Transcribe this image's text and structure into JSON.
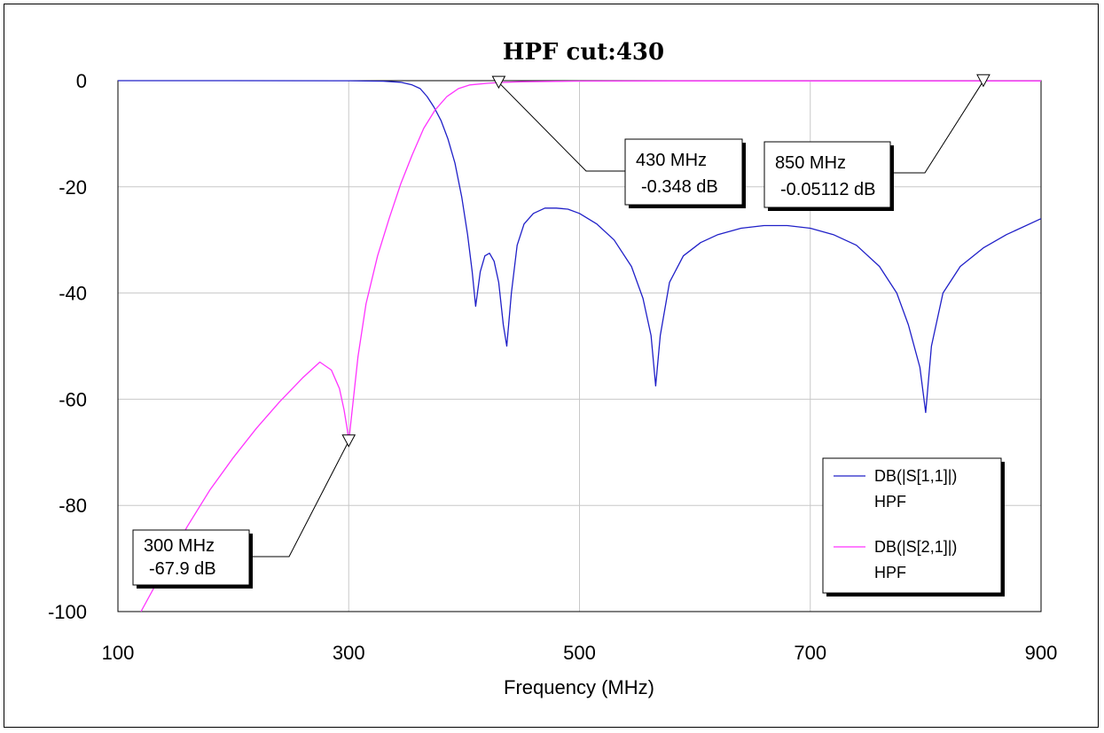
{
  "chart_data": {
    "type": "line",
    "title": "HPF cut:430",
    "xlabel": "Frequency (MHz)",
    "ylabel": "",
    "xlim": [
      100,
      900
    ],
    "ylim": [
      -100,
      0
    ],
    "x_ticks": [
      100,
      300,
      500,
      700,
      900
    ],
    "x_tick_labels": [
      "100",
      "300",
      "500",
      "700",
      "900"
    ],
    "y_ticks": [
      0,
      -20,
      -40,
      -60,
      -80,
      -100
    ],
    "y_tick_labels": [
      "0",
      "-20",
      "-40",
      "-60",
      "-80",
      "-100"
    ],
    "grid": true,
    "legend_position": "bottom-right",
    "series": [
      {
        "name": "DB(|S[1,1]|)",
        "label2": "HPF",
        "color": "#2020c8",
        "x": [
          100,
          200,
          300,
          330,
          345,
          355,
          362,
          368,
          374,
          380,
          386,
          392,
          398,
          403,
          407,
          410,
          414,
          418,
          422,
          426,
          430,
          434,
          437,
          441,
          446,
          452,
          460,
          470,
          480,
          490,
          500,
          515,
          530,
          545,
          555,
          562,
          566,
          570,
          578,
          590,
          605,
          620,
          640,
          660,
          680,
          700,
          720,
          740,
          760,
          775,
          785,
          795,
          800,
          805,
          815,
          830,
          850,
          870,
          900
        ],
        "y": [
          0,
          0,
          -0.02,
          -0.1,
          -0.3,
          -0.8,
          -1.5,
          -3,
          -5,
          -7.5,
          -11,
          -15.5,
          -22,
          -29,
          -36,
          -42.5,
          -36,
          -33,
          -32.5,
          -34,
          -38,
          -46,
          -50,
          -40,
          -31,
          -27,
          -25,
          -24,
          -24,
          -24.2,
          -25,
          -27,
          -30,
          -35,
          -41,
          -48,
          -57.5,
          -48,
          -38,
          -33,
          -30.5,
          -29,
          -27.8,
          -27.3,
          -27.3,
          -27.8,
          -29,
          -31,
          -35,
          -40,
          -46,
          -54,
          -62.5,
          -50,
          -40,
          -35,
          -31.5,
          -29,
          -26
        ]
      },
      {
        "name": "DB(|S[2,1]|)",
        "label2": "HPF",
        "color": "#ff33ff",
        "x": [
          120,
          140,
          160,
          180,
          200,
          220,
          240,
          260,
          275,
          285,
          292,
          296,
          299,
          300,
          303,
          308,
          315,
          325,
          335,
          345,
          355,
          365,
          375,
          385,
          395,
          405,
          420,
          430,
          450,
          500,
          600,
          700,
          900
        ],
        "y": [
          -100,
          -92,
          -84,
          -77,
          -71,
          -65.5,
          -60.5,
          -56,
          -53,
          -54.5,
          -58,
          -62,
          -66,
          -68,
          -62,
          -52,
          -42,
          -33,
          -26,
          -19.5,
          -14,
          -9,
          -5.5,
          -3,
          -1.5,
          -0.8,
          -0.5,
          -0.35,
          -0.2,
          -0.08,
          -0.05,
          -0.05,
          -0.05
        ]
      }
    ],
    "markers": [
      {
        "x": 300,
        "y": -67.9,
        "label1": "300 MHz",
        "label2": "-67.9 dB"
      },
      {
        "x": 430,
        "y": -0.348,
        "label1": "430 MHz",
        "label2": "-0.348 dB"
      },
      {
        "x": 850,
        "y": -0.05112,
        "label1": "850 MHz",
        "label2": "-0.05112 dB"
      }
    ]
  }
}
